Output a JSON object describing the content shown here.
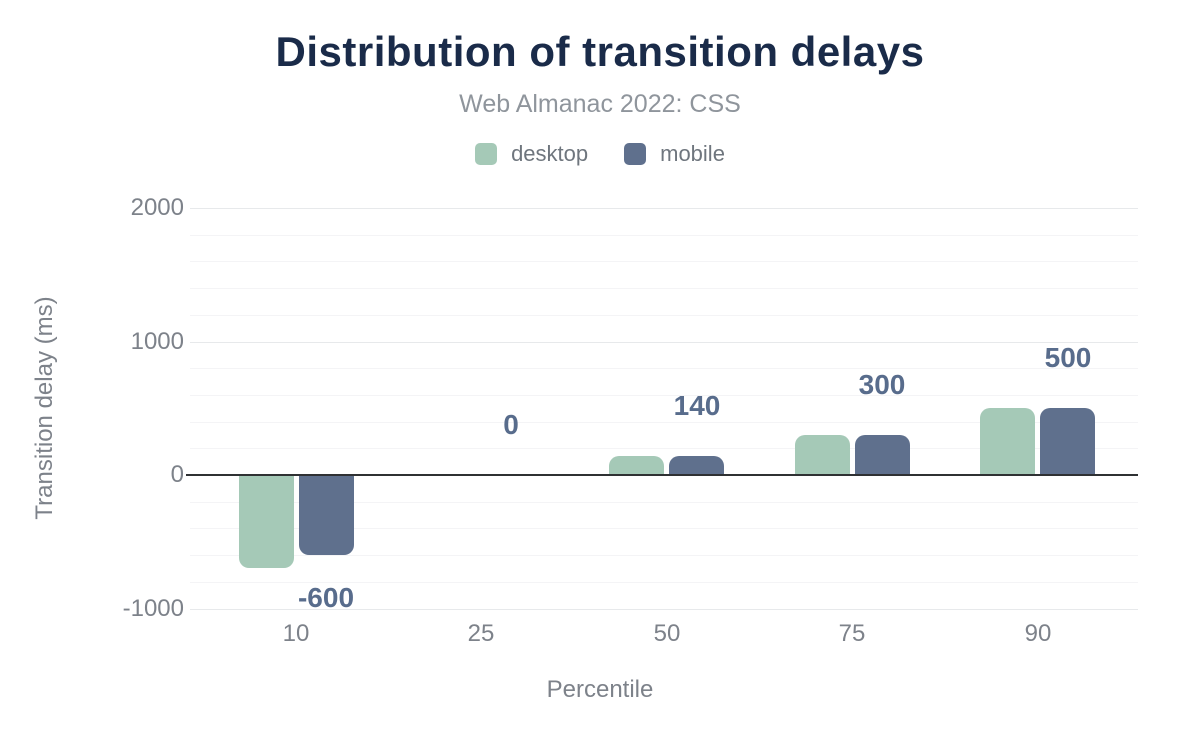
{
  "header": {
    "title": "Distribution of transition delays",
    "subtitle": "Web Almanac 2022: CSS"
  },
  "chart_data": {
    "type": "bar",
    "title": "Distribution of transition delays",
    "subtitle": "Web Almanac 2022: CSS",
    "xlabel": "Percentile",
    "ylabel": "Transition delay (ms)",
    "categories": [
      "10",
      "25",
      "50",
      "75",
      "90"
    ],
    "series": [
      {
        "name": "desktop",
        "color": "#a5c9b7",
        "values": [
          -700,
          0,
          140,
          300,
          500
        ]
      },
      {
        "name": "mobile",
        "color": "#5f708d",
        "values": [
          -600,
          0,
          140,
          300,
          500
        ]
      }
    ],
    "data_labels": {
      "series": "mobile",
      "values": [
        "-600",
        "0",
        "140",
        "300",
        "500"
      ],
      "color": "#586c8c"
    },
    "yticks": [
      2000,
      1000,
      0,
      -1000
    ],
    "ylim": [
      -1000,
      2000
    ],
    "grid_step": 200,
    "grid": "horizontal",
    "legend_position": "top",
    "zero_line_color": "#2f3133",
    "background": "#ffffff"
  }
}
